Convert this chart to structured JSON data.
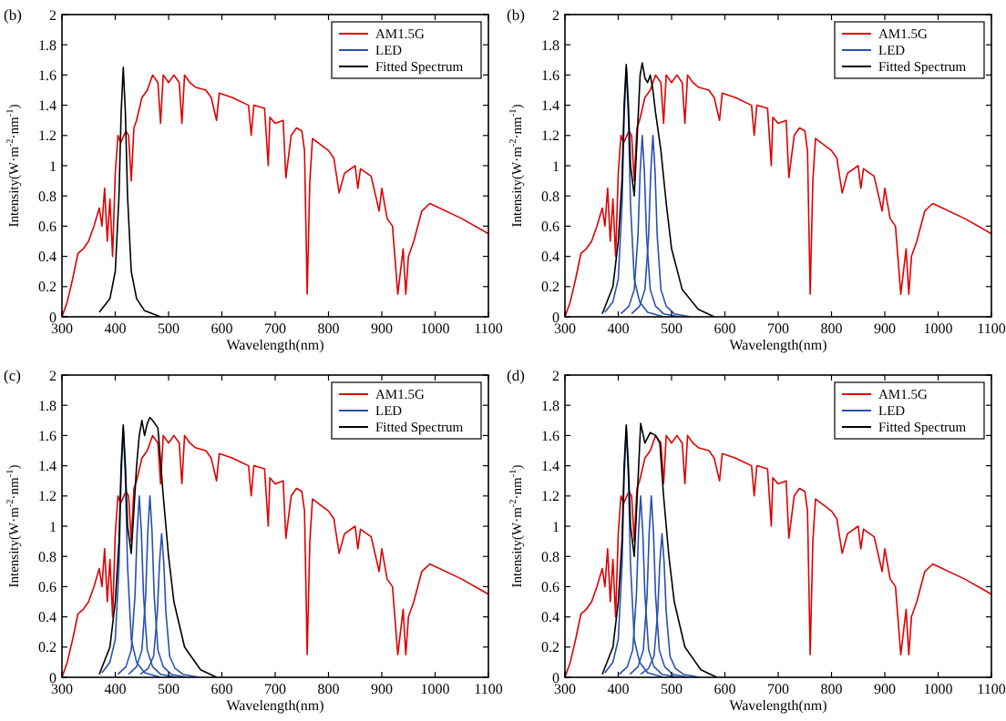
{
  "chart_data": [
    {
      "type": "line",
      "title": "(b)",
      "xlabel": "Wavelength(nm)",
      "ylabel": "Intensity(W·m$^{-2}$·nm$^{-1}$)",
      "xlim": [
        300,
        1100
      ],
      "ylim": [
        0,
        2
      ],
      "xticks": [
        300,
        400,
        500,
        600,
        700,
        800,
        900,
        1000,
        1100
      ],
      "yticks": [
        0,
        0.2,
        0.4,
        0.6,
        0.8,
        1,
        1.2,
        1.4,
        1.6,
        1.8,
        2
      ],
      "grid": false,
      "legend": "top right",
      "series": [
        {
          "name": "AM1.5G",
          "color": "#e00000",
          "x": [
            300,
            310,
            320,
            330,
            340,
            350,
            360,
            370,
            375,
            380,
            385,
            390,
            395,
            400,
            405,
            410,
            420,
            425,
            430,
            435,
            440,
            450,
            460,
            470,
            480,
            485,
            490,
            500,
            510,
            520,
            525,
            530,
            540,
            550,
            570,
            580,
            590,
            595,
            620,
            650,
            655,
            660,
            680,
            687,
            690,
            700,
            715,
            720,
            730,
            740,
            750,
            755,
            760,
            765,
            770,
            800,
            810,
            820,
            830,
            850,
            855,
            860,
            880,
            895,
            900,
            910,
            920,
            930,
            940,
            945,
            950,
            960,
            975,
            990,
            1050,
            1100
          ],
          "values": [
            0,
            0.1,
            0.25,
            0.42,
            0.45,
            0.5,
            0.6,
            0.72,
            0.6,
            0.85,
            0.5,
            0.78,
            0.4,
            0.95,
            1.2,
            1.15,
            1.23,
            1.2,
            0.9,
            1.25,
            1.3,
            1.45,
            1.5,
            1.6,
            1.55,
            1.28,
            1.6,
            1.55,
            1.6,
            1.55,
            1.28,
            1.6,
            1.55,
            1.52,
            1.5,
            1.45,
            1.3,
            1.48,
            1.45,
            1.4,
            1.2,
            1.4,
            1.38,
            1,
            1.32,
            1.28,
            1.3,
            0.92,
            1.2,
            1.25,
            1.23,
            1.1,
            0.15,
            0.9,
            1.18,
            1.1,
            1.05,
            0.82,
            0.95,
            1,
            0.85,
            0.98,
            0.93,
            0.7,
            0.85,
            0.65,
            0.6,
            0.15,
            0.45,
            0.15,
            0.4,
            0.5,
            0.7,
            0.75,
            0.65,
            0.55
          ]
        },
        {
          "name": "LED",
          "color": "#2850b0"
        },
        {
          "name": "Fitted Spectrum",
          "color": "#000000",
          "x": [
            370,
            390,
            400,
            407,
            411,
            415,
            419,
            423,
            430,
            440,
            455,
            485
          ],
          "values": [
            0.03,
            0.12,
            0.3,
            0.8,
            1.35,
            1.65,
            1.35,
            0.8,
            0.3,
            0.12,
            0.04,
            0
          ]
        }
      ]
    },
    {
      "type": "line",
      "title": "(b)",
      "xlabel": "Wavelength(nm)",
      "ylabel": "Intensity(W·m$^{-2}$·nm$^{-1}$)",
      "xlim": [
        300,
        1100
      ],
      "ylim": [
        0,
        2
      ],
      "xticks": [
        300,
        400,
        500,
        600,
        700,
        800,
        900,
        1000,
        1100
      ],
      "yticks": [
        0,
        0.2,
        0.4,
        0.6,
        0.8,
        1,
        1.2,
        1.4,
        1.6,
        1.8,
        2
      ],
      "grid": false,
      "legend": "top right",
      "series": [
        {
          "name": "AM1.5G",
          "color": "#e00000",
          "x": [
            300,
            310,
            320,
            330,
            340,
            350,
            360,
            370,
            375,
            380,
            385,
            390,
            395,
            400,
            405,
            410,
            420,
            425,
            430,
            435,
            440,
            450,
            460,
            470,
            480,
            485,
            490,
            500,
            510,
            520,
            525,
            530,
            540,
            550,
            570,
            580,
            590,
            595,
            620,
            650,
            655,
            660,
            680,
            687,
            690,
            700,
            715,
            720,
            730,
            740,
            750,
            755,
            760,
            765,
            770,
            800,
            810,
            820,
            830,
            850,
            855,
            860,
            880,
            895,
            900,
            910,
            920,
            930,
            940,
            945,
            950,
            960,
            975,
            990,
            1050,
            1100
          ],
          "values": [
            0,
            0.1,
            0.25,
            0.42,
            0.45,
            0.5,
            0.6,
            0.72,
            0.6,
            0.85,
            0.5,
            0.78,
            0.4,
            0.95,
            1.2,
            1.15,
            1.23,
            1.2,
            0.9,
            1.25,
            1.3,
            1.45,
            1.5,
            1.6,
            1.55,
            1.28,
            1.6,
            1.55,
            1.6,
            1.55,
            1.28,
            1.6,
            1.55,
            1.52,
            1.5,
            1.45,
            1.3,
            1.48,
            1.45,
            1.4,
            1.2,
            1.4,
            1.38,
            1,
            1.32,
            1.28,
            1.3,
            0.92,
            1.2,
            1.25,
            1.23,
            1.1,
            0.15,
            0.9,
            1.18,
            1.1,
            1.05,
            0.82,
            0.95,
            1,
            0.85,
            0.98,
            0.93,
            0.7,
            0.85,
            0.65,
            0.6,
            0.15,
            0.45,
            0.15,
            0.4,
            0.5,
            0.7,
            0.75,
            0.65,
            0.55
          ]
        },
        {
          "name": "LED",
          "color": "#2850b0",
          "x": [
            375,
            390,
            400,
            407,
            411,
            415,
            419,
            423,
            430,
            440,
            455,
            485
          ],
          "values": [
            0.03,
            0.1,
            0.25,
            0.74,
            1.32,
            1.65,
            1.32,
            0.74,
            0.25,
            0.1,
            0.03,
            0
          ]
        },
        {
          "color": "#2850b0",
          "x": [
            405,
            420,
            430,
            437,
            441,
            445,
            449,
            453,
            460,
            470,
            485,
            515
          ],
          "values": [
            0.02,
            0.07,
            0.18,
            0.54,
            0.96,
            1.2,
            0.96,
            0.54,
            0.18,
            0.07,
            0.02,
            0
          ]
        },
        {
          "color": "#2850b0",
          "x": [
            425,
            440,
            450,
            457,
            461,
            465,
            469,
            473,
            480,
            490,
            505,
            535
          ],
          "values": [
            0.02,
            0.07,
            0.18,
            0.54,
            0.96,
            1.2,
            0.96,
            0.54,
            0.18,
            0.07,
            0.02,
            0
          ]
        },
        {
          "name": "Fitted Spectrum",
          "color": "#000000",
          "x": [
            370,
            390,
            400,
            407,
            411,
            415,
            419,
            423,
            430,
            437,
            441,
            445,
            450,
            455,
            460,
            465,
            470,
            480,
            490,
            500,
            520,
            550,
            580
          ],
          "values": [
            0.02,
            0.2,
            0.5,
            0.9,
            1.4,
            1.67,
            1.4,
            1,
            0.8,
            1.3,
            1.6,
            1.68,
            1.58,
            1.55,
            1.6,
            1.5,
            1.35,
            1.1,
            0.75,
            0.45,
            0.18,
            0.05,
            0
          ]
        }
      ]
    },
    {
      "type": "line",
      "title": "(c)",
      "xlabel": "Wavelength(nm)",
      "ylabel": "Intensity(W·m$^{-2}$·nm$^{-1}$)",
      "xlim": [
        300,
        1100
      ],
      "ylim": [
        0,
        2
      ],
      "xticks": [
        300,
        400,
        500,
        600,
        700,
        800,
        900,
        1000,
        1100
      ],
      "yticks": [
        0,
        0.2,
        0.4,
        0.6,
        0.8,
        1,
        1.2,
        1.4,
        1.6,
        1.8,
        2
      ],
      "grid": false,
      "legend": "top right",
      "series": [
        {
          "name": "AM1.5G",
          "color": "#e00000",
          "x": [
            300,
            310,
            320,
            330,
            340,
            350,
            360,
            370,
            375,
            380,
            385,
            390,
            395,
            400,
            405,
            410,
            420,
            425,
            430,
            435,
            440,
            450,
            460,
            470,
            480,
            485,
            490,
            500,
            510,
            520,
            525,
            530,
            540,
            550,
            570,
            580,
            590,
            595,
            620,
            650,
            655,
            660,
            680,
            687,
            690,
            700,
            715,
            720,
            730,
            740,
            750,
            755,
            760,
            765,
            770,
            800,
            810,
            820,
            830,
            850,
            855,
            860,
            880,
            895,
            900,
            910,
            920,
            930,
            940,
            945,
            950,
            960,
            975,
            990,
            1050,
            1100
          ],
          "values": [
            0,
            0.1,
            0.25,
            0.42,
            0.45,
            0.5,
            0.6,
            0.72,
            0.6,
            0.85,
            0.5,
            0.78,
            0.4,
            0.95,
            1.2,
            1.15,
            1.23,
            1.2,
            0.9,
            1.25,
            1.3,
            1.45,
            1.5,
            1.6,
            1.55,
            1.28,
            1.6,
            1.55,
            1.6,
            1.55,
            1.28,
            1.6,
            1.55,
            1.52,
            1.5,
            1.45,
            1.3,
            1.48,
            1.45,
            1.4,
            1.2,
            1.4,
            1.38,
            1,
            1.32,
            1.28,
            1.3,
            0.92,
            1.2,
            1.25,
            1.23,
            1.1,
            0.15,
            0.9,
            1.18,
            1.1,
            1.05,
            0.82,
            0.95,
            1,
            0.85,
            0.98,
            0.93,
            0.7,
            0.85,
            0.65,
            0.6,
            0.15,
            0.45,
            0.15,
            0.4,
            0.5,
            0.7,
            0.75,
            0.65,
            0.55
          ]
        },
        {
          "name": "LED",
          "color": "#2850b0",
          "x": [
            375,
            390,
            400,
            407,
            411,
            415,
            419,
            423,
            430,
            440,
            455,
            485
          ],
          "values": [
            0.03,
            0.1,
            0.25,
            0.74,
            1.32,
            1.65,
            1.32,
            0.74,
            0.25,
            0.1,
            0.03,
            0
          ]
        },
        {
          "color": "#2850b0",
          "x": [
            405,
            420,
            430,
            437,
            441,
            445,
            449,
            453,
            460,
            470,
            485,
            515
          ],
          "values": [
            0.02,
            0.07,
            0.18,
            0.54,
            0.96,
            1.2,
            0.96,
            0.54,
            0.18,
            0.07,
            0.02,
            0
          ]
        },
        {
          "color": "#2850b0",
          "x": [
            425,
            440,
            450,
            457,
            461,
            465,
            469,
            473,
            480,
            490,
            505,
            535
          ],
          "values": [
            0.02,
            0.07,
            0.18,
            0.54,
            0.96,
            1.2,
            0.96,
            0.54,
            0.18,
            0.07,
            0.02,
            0
          ]
        },
        {
          "color": "#2850b0",
          "x": [
            447,
            462,
            472,
            479,
            483,
            487,
            491,
            495,
            502,
            512,
            527,
            557
          ],
          "values": [
            0.02,
            0.06,
            0.14,
            0.43,
            0.76,
            0.95,
            0.76,
            0.43,
            0.14,
            0.06,
            0.02,
            0
          ]
        },
        {
          "name": "Fitted Spectrum",
          "color": "#000000",
          "x": [
            370,
            390,
            400,
            407,
            411,
            415,
            419,
            423,
            430,
            440,
            445,
            450,
            455,
            460,
            465,
            470,
            480,
            490,
            500,
            510,
            530,
            560,
            590
          ],
          "values": [
            0.02,
            0.2,
            0.5,
            0.9,
            1.4,
            1.67,
            1.4,
            1,
            0.82,
            1.4,
            1.6,
            1.7,
            1.6,
            1.68,
            1.72,
            1.7,
            1.65,
            1.2,
            0.8,
            0.5,
            0.2,
            0.05,
            0
          ]
        }
      ]
    },
    {
      "type": "line",
      "title": "(d)",
      "xlabel": "Wavelength(nm)",
      "ylabel": "Intensity(W·m$^{-2}$·nm$^{-1}$)",
      "xlim": [
        300,
        1100
      ],
      "ylim": [
        0,
        2
      ],
      "xticks": [
        300,
        400,
        500,
        600,
        700,
        800,
        900,
        1000,
        1100
      ],
      "yticks": [
        0,
        0.2,
        0.4,
        0.6,
        0.8,
        1,
        1.2,
        1.4,
        1.6,
        1.8,
        2
      ],
      "grid": false,
      "legend": "top right",
      "series": [
        {
          "name": "AM1.5G",
          "color": "#e00000",
          "x": [
            300,
            310,
            320,
            330,
            340,
            350,
            360,
            370,
            375,
            380,
            385,
            390,
            395,
            400,
            405,
            410,
            420,
            425,
            430,
            435,
            440,
            450,
            460,
            470,
            480,
            485,
            490,
            500,
            510,
            520,
            525,
            530,
            540,
            550,
            570,
            580,
            590,
            595,
            620,
            650,
            655,
            660,
            680,
            687,
            690,
            700,
            715,
            720,
            730,
            740,
            750,
            755,
            760,
            765,
            770,
            800,
            810,
            820,
            830,
            850,
            855,
            860,
            880,
            895,
            900,
            910,
            920,
            930,
            940,
            945,
            950,
            960,
            975,
            990,
            1050,
            1100
          ],
          "values": [
            0,
            0.1,
            0.25,
            0.42,
            0.45,
            0.5,
            0.6,
            0.72,
            0.6,
            0.85,
            0.5,
            0.78,
            0.4,
            0.95,
            1.2,
            1.15,
            1.23,
            1.2,
            0.9,
            1.25,
            1.3,
            1.45,
            1.5,
            1.6,
            1.55,
            1.28,
            1.6,
            1.55,
            1.6,
            1.55,
            1.28,
            1.6,
            1.55,
            1.52,
            1.5,
            1.45,
            1.3,
            1.48,
            1.45,
            1.4,
            1.2,
            1.4,
            1.38,
            1,
            1.32,
            1.28,
            1.3,
            0.92,
            1.2,
            1.25,
            1.23,
            1.1,
            0.15,
            0.9,
            1.18,
            1.1,
            1.05,
            0.82,
            0.95,
            1,
            0.85,
            0.98,
            0.93,
            0.7,
            0.85,
            0.65,
            0.6,
            0.15,
            0.45,
            0.15,
            0.4,
            0.5,
            0.7,
            0.75,
            0.65,
            0.55
          ]
        },
        {
          "name": "LED",
          "color": "#2850b0",
          "x": [
            375,
            390,
            400,
            407,
            411,
            415,
            419,
            423,
            430,
            440,
            455,
            485
          ],
          "values": [
            0.03,
            0.1,
            0.25,
            0.74,
            1.32,
            1.65,
            1.32,
            0.74,
            0.25,
            0.1,
            0.03,
            0
          ]
        },
        {
          "color": "#2850b0",
          "x": [
            402,
            417,
            427,
            434,
            438,
            442,
            446,
            450,
            457,
            467,
            482,
            512
          ],
          "values": [
            0.02,
            0.07,
            0.18,
            0.54,
            0.96,
            1.2,
            0.96,
            0.54,
            0.18,
            0.07,
            0.02,
            0
          ]
        },
        {
          "color": "#2850b0",
          "x": [
            422,
            437,
            447,
            454,
            458,
            462,
            466,
            470,
            477,
            487,
            502,
            532
          ],
          "values": [
            0.02,
            0.07,
            0.18,
            0.54,
            0.96,
            1.2,
            0.96,
            0.54,
            0.18,
            0.07,
            0.02,
            0
          ]
        },
        {
          "color": "#2850b0",
          "x": [
            442,
            457,
            467,
            474,
            478,
            482,
            486,
            490,
            497,
            507,
            522,
            552
          ],
          "values": [
            0.02,
            0.06,
            0.14,
            0.43,
            0.76,
            0.95,
            0.76,
            0.43,
            0.14,
            0.06,
            0.02,
            0
          ]
        },
        {
          "name": "Fitted Spectrum",
          "color": "#000000",
          "x": [
            370,
            390,
            400,
            407,
            411,
            415,
            419,
            423,
            430,
            437,
            442,
            450,
            460,
            470,
            478,
            485,
            495,
            505,
            525,
            555,
            585
          ],
          "values": [
            0.02,
            0.2,
            0.5,
            0.9,
            1.4,
            1.67,
            1.4,
            1,
            0.8,
            1.3,
            1.68,
            1.55,
            1.62,
            1.6,
            1.55,
            1.2,
            0.8,
            0.5,
            0.2,
            0.05,
            0
          ]
        }
      ]
    }
  ]
}
